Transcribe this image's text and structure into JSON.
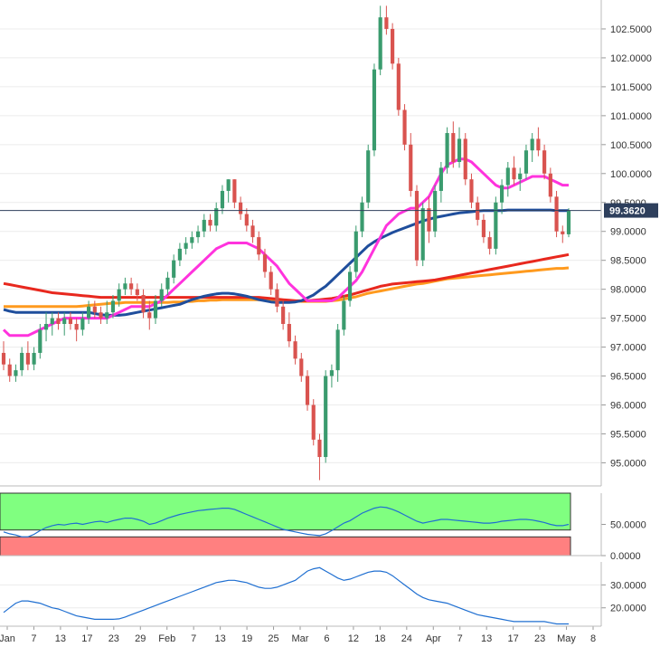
{
  "chart_data": {
    "type": "candlestick",
    "instrument_price_label": "99.3620",
    "current_price": 99.362,
    "x_axis": {
      "tick_labels": [
        "Jan",
        "7",
        "13",
        "17",
        "23",
        "29",
        "Feb",
        "7",
        "13",
        "19",
        "25",
        "Mar",
        "6",
        "12",
        "18",
        "24",
        "Apr",
        "7",
        "13",
        "17",
        "23",
        "May",
        "8"
      ]
    },
    "main_panel": {
      "ylim": [
        94.6,
        103.0
      ],
      "y_tick_labels": [
        "102.5000",
        "102.0000",
        "101.5000",
        "101.0000",
        "100.5000",
        "100.0000",
        "99.5000",
        "99.0000",
        "98.5000",
        "98.0000",
        "97.5000",
        "97.0000",
        "96.5000",
        "96.0000",
        "95.5000",
        "95.0000"
      ],
      "y_tick_values": [
        102.5,
        102.0,
        101.5,
        101.0,
        100.5,
        100.0,
        99.5,
        99.0,
        98.5,
        98.0,
        97.5,
        97.0,
        96.5,
        96.0,
        95.5,
        95.0
      ],
      "candles": [
        [
          96.9,
          97.1,
          96.6,
          96.7
        ],
        [
          96.7,
          96.8,
          96.4,
          96.5
        ],
        [
          96.5,
          96.7,
          96.4,
          96.6
        ],
        [
          96.6,
          97.0,
          96.5,
          96.9
        ],
        [
          96.9,
          97.1,
          96.6,
          96.7
        ],
        [
          96.7,
          97.0,
          96.6,
          96.9
        ],
        [
          96.9,
          97.4,
          96.8,
          97.3
        ],
        [
          97.3,
          97.6,
          97.1,
          97.4
        ],
        [
          97.4,
          97.6,
          97.2,
          97.5
        ],
        [
          97.5,
          97.6,
          97.3,
          97.4
        ],
        [
          97.4,
          97.6,
          97.2,
          97.5
        ],
        [
          97.5,
          97.6,
          97.3,
          97.4
        ],
        [
          97.4,
          97.5,
          97.1,
          97.3
        ],
        [
          97.3,
          97.6,
          97.2,
          97.5
        ],
        [
          97.5,
          97.8,
          97.4,
          97.7
        ],
        [
          97.7,
          97.8,
          97.5,
          97.6
        ],
        [
          97.6,
          97.7,
          97.4,
          97.5
        ],
        [
          97.5,
          97.8,
          97.4,
          97.6
        ],
        [
          97.6,
          97.9,
          97.5,
          97.8
        ],
        [
          97.8,
          98.1,
          97.7,
          98.0
        ],
        [
          98.0,
          98.2,
          97.9,
          98.1
        ],
        [
          98.1,
          98.2,
          97.9,
          98.0
        ],
        [
          98.0,
          98.1,
          97.8,
          97.9
        ],
        [
          97.9,
          98.0,
          97.5,
          97.6
        ],
        [
          97.6,
          97.8,
          97.3,
          97.5
        ],
        [
          97.5,
          97.9,
          97.4,
          97.8
        ],
        [
          97.8,
          98.1,
          97.7,
          98.0
        ],
        [
          98.0,
          98.3,
          97.9,
          98.2
        ],
        [
          98.2,
          98.6,
          98.1,
          98.5
        ],
        [
          98.5,
          98.8,
          98.4,
          98.7
        ],
        [
          98.7,
          98.9,
          98.6,
          98.8
        ],
        [
          98.8,
          99.0,
          98.7,
          98.9
        ],
        [
          98.9,
          99.1,
          98.8,
          99.0
        ],
        [
          99.0,
          99.3,
          98.9,
          99.2
        ],
        [
          99.2,
          99.3,
          99.0,
          99.1
        ],
        [
          99.1,
          99.5,
          99.0,
          99.4
        ],
        [
          99.4,
          99.8,
          99.3,
          99.7
        ],
        [
          99.7,
          99.9,
          99.5,
          99.9
        ],
        [
          99.9,
          99.9,
          99.4,
          99.5
        ],
        [
          99.5,
          99.6,
          99.2,
          99.3
        ],
        [
          99.3,
          99.4,
          99.0,
          99.1
        ],
        [
          99.1,
          99.2,
          98.8,
          98.9
        ],
        [
          98.9,
          99.0,
          98.5,
          98.6
        ],
        [
          98.6,
          98.7,
          98.2,
          98.3
        ],
        [
          98.3,
          98.4,
          97.9,
          98.0
        ],
        [
          98.0,
          98.1,
          97.6,
          97.7
        ],
        [
          97.7,
          97.8,
          97.3,
          97.4
        ],
        [
          97.4,
          97.6,
          97.0,
          97.1
        ],
        [
          97.1,
          97.2,
          96.7,
          96.8
        ],
        [
          96.8,
          96.9,
          96.4,
          96.5
        ],
        [
          96.5,
          96.6,
          95.9,
          96.0
        ],
        [
          96.0,
          96.1,
          95.3,
          95.4
        ],
        [
          95.4,
          95.5,
          94.7,
          95.1
        ],
        [
          95.1,
          96.6,
          95.0,
          96.5
        ],
        [
          96.5,
          96.7,
          96.3,
          96.6
        ],
        [
          96.6,
          97.4,
          96.4,
          97.3
        ],
        [
          97.3,
          97.9,
          97.2,
          97.8
        ],
        [
          97.8,
          98.4,
          97.7,
          98.3
        ],
        [
          98.3,
          99.1,
          98.2,
          99.0
        ],
        [
          99.0,
          99.6,
          98.9,
          99.5
        ],
        [
          99.5,
          100.5,
          99.4,
          100.4
        ],
        [
          100.4,
          101.9,
          100.3,
          101.8
        ],
        [
          101.8,
          102.9,
          101.7,
          102.7
        ],
        [
          102.7,
          102.9,
          102.4,
          102.5
        ],
        [
          102.5,
          102.6,
          101.8,
          101.9
        ],
        [
          101.9,
          102.0,
          101.0,
          101.1
        ],
        [
          101.1,
          101.2,
          100.4,
          100.5
        ],
        [
          100.5,
          100.7,
          99.6,
          99.7
        ],
        [
          99.7,
          99.8,
          98.4,
          98.5
        ],
        [
          98.5,
          99.5,
          98.4,
          99.4
        ],
        [
          99.4,
          99.6,
          98.8,
          99.0
        ],
        [
          99.0,
          99.8,
          98.9,
          99.7
        ],
        [
          99.7,
          100.2,
          99.5,
          100.1
        ],
        [
          100.1,
          100.8,
          100.0,
          100.7
        ],
        [
          100.7,
          100.9,
          100.1,
          100.2
        ],
        [
          100.2,
          100.8,
          100.1,
          100.6
        ],
        [
          100.6,
          100.7,
          99.8,
          99.9
        ],
        [
          99.9,
          100.0,
          99.4,
          99.5
        ],
        [
          99.5,
          99.6,
          99.1,
          99.2
        ],
        [
          99.2,
          99.3,
          98.8,
          98.9
        ],
        [
          98.9,
          99.0,
          98.6,
          98.7
        ],
        [
          98.7,
          99.6,
          98.6,
          99.5
        ],
        [
          99.5,
          99.9,
          99.3,
          99.8
        ],
        [
          99.8,
          100.2,
          99.6,
          100.1
        ],
        [
          100.1,
          100.3,
          99.8,
          99.9
        ],
        [
          99.9,
          100.1,
          99.7,
          100.0
        ],
        [
          100.0,
          100.5,
          99.9,
          100.4
        ],
        [
          100.4,
          100.7,
          100.2,
          100.6
        ],
        [
          100.6,
          100.8,
          100.3,
          100.4
        ],
        [
          100.4,
          100.5,
          99.9,
          100.0
        ],
        [
          100.0,
          100.1,
          99.5,
          99.6
        ],
        [
          99.6,
          99.7,
          98.9,
          99.0
        ],
        [
          99.0,
          99.1,
          98.8,
          98.95
        ],
        [
          98.95,
          99.4,
          98.9,
          99.36
        ]
      ]
    },
    "sma_fast": {
      "color": "#ff33dd",
      "values": [
        97.3,
        97.2,
        97.2,
        97.2,
        97.2,
        97.25,
        97.3,
        97.35,
        97.4,
        97.45,
        97.5,
        97.5,
        97.5,
        97.5,
        97.5,
        97.5,
        97.5,
        97.5,
        97.55,
        97.6,
        97.65,
        97.7,
        97.7,
        97.7,
        97.7,
        97.75,
        97.8,
        97.9,
        98.0,
        98.1,
        98.2,
        98.3,
        98.4,
        98.5,
        98.6,
        98.7,
        98.75,
        98.8,
        98.8,
        98.8,
        98.8,
        98.75,
        98.7,
        98.6,
        98.5,
        98.4,
        98.25,
        98.1,
        98.0,
        97.9,
        97.8,
        97.8,
        97.8,
        97.8,
        97.8,
        97.85,
        97.95,
        98.05,
        98.15,
        98.3,
        98.5,
        98.7,
        98.9,
        99.1,
        99.2,
        99.3,
        99.35,
        99.4,
        99.4,
        99.5,
        99.6,
        99.8,
        100.0,
        100.15,
        100.2,
        100.25,
        100.25,
        100.2,
        100.1,
        100.0,
        99.9,
        99.8,
        99.75,
        99.75,
        99.8,
        99.85,
        99.9,
        99.95,
        99.95,
        99.95,
        99.9,
        99.85,
        99.8,
        99.8
      ]
    },
    "sma_mid": {
      "color": "#1f4e9c",
      "values": [
        97.65,
        97.62,
        97.6,
        97.6,
        97.6,
        97.6,
        97.6,
        97.6,
        97.6,
        97.6,
        97.6,
        97.6,
        97.6,
        97.6,
        97.6,
        97.58,
        97.56,
        97.55,
        97.55,
        97.55,
        97.56,
        97.58,
        97.6,
        97.62,
        97.64,
        97.66,
        97.68,
        97.7,
        97.72,
        97.74,
        97.78,
        97.82,
        97.85,
        97.88,
        97.9,
        97.92,
        97.93,
        97.93,
        97.92,
        97.9,
        97.88,
        97.85,
        97.82,
        97.8,
        97.78,
        97.77,
        97.77,
        97.77,
        97.78,
        97.8,
        97.85,
        97.9,
        97.98,
        98.05,
        98.15,
        98.25,
        98.35,
        98.45,
        98.55,
        98.65,
        98.75,
        98.82,
        98.88,
        98.93,
        98.98,
        99.02,
        99.06,
        99.1,
        99.14,
        99.18,
        99.21,
        99.24,
        99.26,
        99.28,
        99.3,
        99.32,
        99.33,
        99.34,
        99.35,
        99.36,
        99.36,
        99.36,
        99.36,
        99.37,
        99.37,
        99.37,
        99.37,
        99.37,
        99.37,
        99.37,
        99.37,
        99.36,
        99.36,
        99.36
      ]
    },
    "sma_slow": {
      "color": "#e8281e",
      "values": [
        98.1,
        98.08,
        98.06,
        98.04,
        98.02,
        98.0,
        97.98,
        97.96,
        97.94,
        97.93,
        97.92,
        97.91,
        97.9,
        97.89,
        97.88,
        97.87,
        97.86,
        97.86,
        97.86,
        97.86,
        97.86,
        97.86,
        97.86,
        97.86,
        97.86,
        97.86,
        97.86,
        97.86,
        97.86,
        97.86,
        97.86,
        97.86,
        97.86,
        97.86,
        97.86,
        97.86,
        97.86,
        97.86,
        97.86,
        97.86,
        97.86,
        97.86,
        97.86,
        97.85,
        97.84,
        97.83,
        97.82,
        97.81,
        97.8,
        97.8,
        97.8,
        97.81,
        97.82,
        97.83,
        97.84,
        97.86,
        97.88,
        97.9,
        97.93,
        97.96,
        97.99,
        98.02,
        98.05,
        98.07,
        98.09,
        98.1,
        98.11,
        98.12,
        98.13,
        98.14,
        98.15,
        98.16,
        98.18,
        98.2,
        98.22,
        98.24,
        98.26,
        98.28,
        98.3,
        98.32,
        98.34,
        98.36,
        98.38,
        98.4,
        98.42,
        98.44,
        98.46,
        98.48,
        98.5,
        98.52,
        98.54,
        98.56,
        98.58,
        98.6
      ]
    },
    "sma_longest": {
      "color": "#ff9a1e",
      "values": [
        97.7,
        97.7,
        97.7,
        97.7,
        97.7,
        97.7,
        97.7,
        97.7,
        97.7,
        97.7,
        97.7,
        97.7,
        97.7,
        97.71,
        97.72,
        97.73,
        97.74,
        97.75,
        97.76,
        97.76,
        97.77,
        97.77,
        97.77,
        97.77,
        97.77,
        97.77,
        97.77,
        97.77,
        97.78,
        97.78,
        97.79,
        97.79,
        97.8,
        97.8,
        97.81,
        97.81,
        97.82,
        97.82,
        97.82,
        97.82,
        97.82,
        97.82,
        97.82,
        97.82,
        97.82,
        97.82,
        97.81,
        97.8,
        97.8,
        97.79,
        97.79,
        97.79,
        97.79,
        97.79,
        97.8,
        97.81,
        97.83,
        97.85,
        97.87,
        97.9,
        97.93,
        97.95,
        97.97,
        97.99,
        98.01,
        98.03,
        98.05,
        98.07,
        98.09,
        98.1,
        98.12,
        98.14,
        98.16,
        98.18,
        98.19,
        98.2,
        98.21,
        98.22,
        98.23,
        98.24,
        98.25,
        98.26,
        98.27,
        98.28,
        98.29,
        98.3,
        98.31,
        98.32,
        98.33,
        98.34,
        98.35,
        98.36,
        98.36,
        98.37
      ]
    },
    "rsi_panel": {
      "ylim": [
        0,
        100
      ],
      "y_tick_labels": [
        "50.0000",
        "0.0000"
      ],
      "y_tick_values": [
        50,
        0
      ],
      "overbought_color": "#80ff80",
      "oversold_color": "#ff8080",
      "line_color": "#1f6fd1",
      "values": [
        38,
        35,
        33,
        30,
        30,
        34,
        40,
        45,
        48,
        50,
        49,
        51,
        52,
        50,
        52,
        54,
        55,
        53,
        56,
        58,
        60,
        60,
        58,
        55,
        50,
        52,
        56,
        60,
        63,
        66,
        68,
        70,
        72,
        73,
        74,
        75,
        76,
        76,
        74,
        70,
        66,
        62,
        58,
        54,
        50,
        46,
        42,
        40,
        38,
        36,
        34,
        33,
        32,
        35,
        40,
        46,
        52,
        56,
        62,
        68,
        72,
        76,
        78,
        77,
        74,
        70,
        65,
        60,
        55,
        52,
        54,
        56,
        58,
        58,
        57,
        56,
        55,
        54,
        53,
        52,
        52,
        53,
        55,
        56,
        57,
        58,
        58,
        57,
        55,
        53,
        50,
        48,
        48,
        50
      ]
    },
    "adx_panel": {
      "ylim": [
        12,
        40
      ],
      "y_tick_labels": [
        "30.0000",
        "20.0000"
      ],
      "y_tick_values": [
        30,
        20
      ],
      "line_color": "#1f6fd1",
      "values": [
        18,
        20,
        22,
        23,
        23,
        22.5,
        22,
        21,
        20,
        19.5,
        18.5,
        17.5,
        16.5,
        16,
        15.5,
        15,
        15,
        15,
        15,
        15.2,
        16,
        17,
        18,
        19,
        20,
        21,
        22,
        23,
        24,
        25,
        26,
        27,
        28,
        29,
        30,
        31,
        31.5,
        32,
        32,
        31.5,
        31,
        30,
        29,
        28.5,
        28.5,
        29,
        30,
        31,
        32,
        34,
        36,
        37,
        37.5,
        36,
        34.5,
        33,
        32,
        32.5,
        33.5,
        34.5,
        35.5,
        36,
        36,
        35.5,
        34,
        32,
        30,
        28,
        26,
        24.5,
        23.5,
        23,
        22.5,
        22,
        21,
        20,
        19,
        18,
        17,
        16.5,
        16,
        15.5,
        15,
        14.5,
        14,
        14,
        14,
        14,
        14,
        14,
        13.5,
        13,
        13,
        13
      ]
    }
  }
}
